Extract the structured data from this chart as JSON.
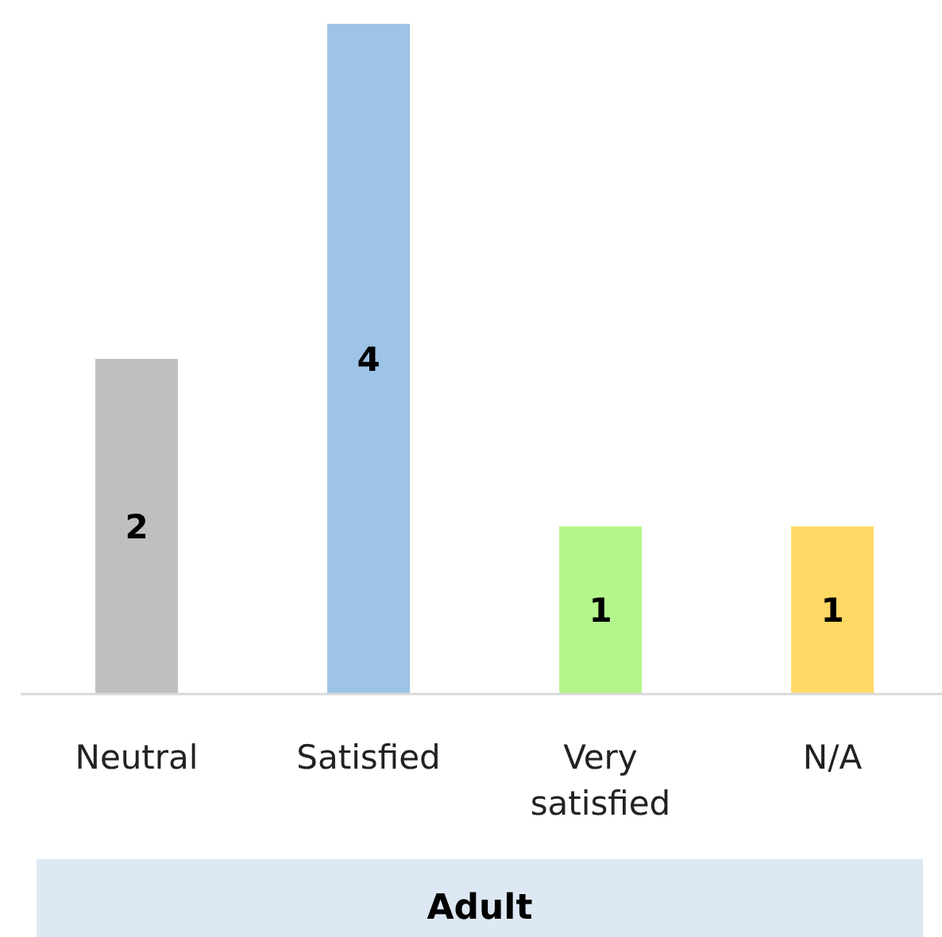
{
  "chart_data": {
    "type": "bar",
    "categories": [
      "Neutral",
      "Satisfied",
      "Very satisfied",
      "N/A"
    ],
    "values": [
      2,
      4,
      1,
      1
    ],
    "colors": [
      "#bfbfbf",
      "#9dc3e6",
      "#b4f58c",
      "#ffd966"
    ],
    "data_labels": true,
    "xlabel": "Adult"
  }
}
